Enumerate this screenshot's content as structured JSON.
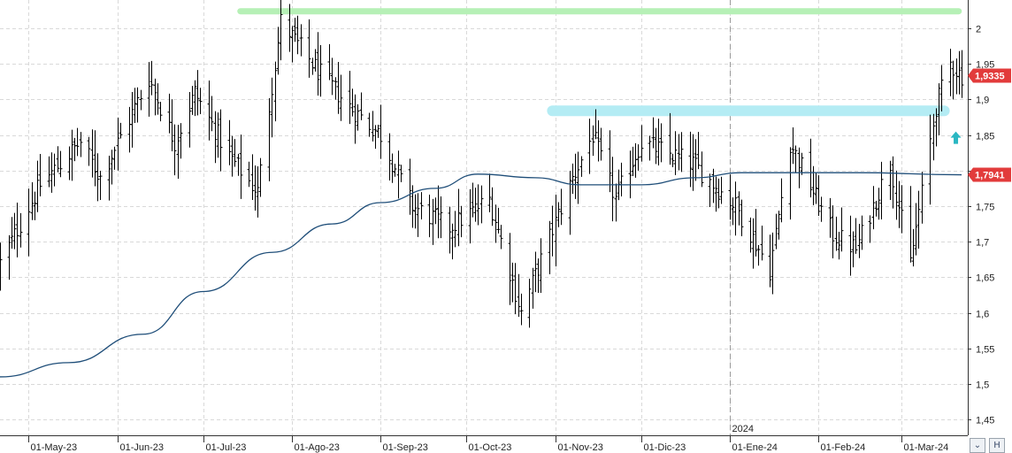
{
  "chart_data": {
    "type": "ohlc",
    "ylim": [
      1.42,
      2.03
    ],
    "y_ticks": [
      "2",
      "1,95",
      "1,9",
      "1,85",
      "1,8",
      "1,75",
      "1,7",
      "1,65",
      "1,6",
      "1,55",
      "1,5",
      "1,45"
    ],
    "y_tick_values": [
      2.0,
      1.95,
      1.9,
      1.85,
      1.8,
      1.75,
      1.7,
      1.65,
      1.6,
      1.55,
      1.5,
      1.45
    ],
    "x_start": "2023-04-21",
    "x_end": "2024-03-22",
    "month_ticks": [
      {
        "date": "2023-05-01",
        "label": "01-May-23"
      },
      {
        "date": "2023-06-01",
        "label": "01-Jun-23"
      },
      {
        "date": "2023-07-01",
        "label": "01-Jul-23"
      },
      {
        "date": "2023-08-01",
        "label": "01-Ago-23"
      },
      {
        "date": "2023-09-01",
        "label": "01-Sep-23"
      },
      {
        "date": "2023-10-01",
        "label": "01-Oct-23"
      },
      {
        "date": "2023-11-01",
        "label": "01-Nov-23"
      },
      {
        "date": "2023-12-01",
        "label": "01-Dic-23"
      },
      {
        "date": "2024-01-01",
        "label": "01-Ene-24"
      },
      {
        "date": "2024-02-01",
        "label": "01-Feb-24"
      },
      {
        "date": "2024-03-01",
        "label": "01-Mar-24"
      }
    ],
    "year_marker": {
      "date": "2024-01-01",
      "label": "2024"
    },
    "anchors": [
      {
        "date": "2023-04-21",
        "close": 1.67
      },
      {
        "date": "2023-05-05",
        "close": 1.78
      },
      {
        "date": "2023-05-19",
        "close": 1.84
      },
      {
        "date": "2023-05-26",
        "close": 1.79
      },
      {
        "date": "2023-06-12",
        "close": 1.93
      },
      {
        "date": "2023-06-21",
        "close": 1.84
      },
      {
        "date": "2023-06-28",
        "close": 1.91
      },
      {
        "date": "2023-07-10",
        "close": 1.82
      },
      {
        "date": "2023-07-20",
        "close": 1.77
      },
      {
        "date": "2023-07-28",
        "close": 2.01
      },
      {
        "date": "2023-08-10",
        "close": 1.94
      },
      {
        "date": "2023-08-21",
        "close": 1.89
      },
      {
        "date": "2023-09-01",
        "close": 1.85
      },
      {
        "date": "2023-09-12",
        "close": 1.75
      },
      {
        "date": "2023-09-25",
        "close": 1.72
      },
      {
        "date": "2023-10-09",
        "close": 1.76
      },
      {
        "date": "2023-10-20",
        "close": 1.6
      },
      {
        "date": "2023-11-06",
        "close": 1.78
      },
      {
        "date": "2023-11-14",
        "close": 1.85
      },
      {
        "date": "2023-11-22",
        "close": 1.76
      },
      {
        "date": "2023-12-01",
        "close": 1.84
      },
      {
        "date": "2023-12-19",
        "close": 1.81
      },
      {
        "date": "2024-01-03",
        "close": 1.75
      },
      {
        "date": "2024-01-15",
        "close": 1.66
      },
      {
        "date": "2024-01-22",
        "close": 1.84
      },
      {
        "date": "2024-02-06",
        "close": 1.71
      },
      {
        "date": "2024-02-14",
        "close": 1.69
      },
      {
        "date": "2024-02-26",
        "close": 1.81
      },
      {
        "date": "2024-03-04",
        "close": 1.67
      },
      {
        "date": "2024-03-13",
        "close": 1.89
      },
      {
        "date": "2024-03-18",
        "close": 1.95
      },
      {
        "date": "2024-03-22",
        "close": 1.9335
      }
    ],
    "moving_average": {
      "color": "#1f4e79",
      "points": [
        {
          "date": "2023-04-21",
          "value": 1.51
        },
        {
          "date": "2023-05-15",
          "value": 1.53
        },
        {
          "date": "2023-06-10",
          "value": 1.57
        },
        {
          "date": "2023-07-01",
          "value": 1.63
        },
        {
          "date": "2023-07-25",
          "value": 1.685
        },
        {
          "date": "2023-08-15",
          "value": 1.725
        },
        {
          "date": "2023-09-01",
          "value": 1.755
        },
        {
          "date": "2023-09-20",
          "value": 1.775
        },
        {
          "date": "2023-10-05",
          "value": 1.795
        },
        {
          "date": "2023-10-25",
          "value": 1.79
        },
        {
          "date": "2023-11-10",
          "value": 1.78
        },
        {
          "date": "2023-12-01",
          "value": 1.78
        },
        {
          "date": "2023-12-20",
          "value": 1.79
        },
        {
          "date": "2024-01-05",
          "value": 1.797
        },
        {
          "date": "2024-01-25",
          "value": 1.797
        },
        {
          "date": "2024-02-15",
          "value": 1.797
        },
        {
          "date": "2024-03-22",
          "value": 1.7941
        }
      ]
    },
    "resistance_zone_high": {
      "from": "2023-07-14",
      "to": "2024-03-21",
      "value": 2.024,
      "color": "#b6f0b6"
    },
    "resistance_zone_mid": {
      "from": "2023-10-31",
      "to": "2024-03-16",
      "value": 1.884,
      "color": "#b4ecf4"
    },
    "signal_arrow": {
      "date": "2024-03-20",
      "value": 1.845,
      "color": "#2ab7c2"
    },
    "last_price": {
      "value": 1.9335,
      "label": "1,9335",
      "color": "#e23b3b"
    },
    "ma_label": {
      "value": 1.7941,
      "label": "1,7941",
      "color": "#e23b3b"
    }
  },
  "controls": {
    "scroll_icon": "double-chevron-down-icon",
    "scroll_symbol": "⌄",
    "toolbar_icon": "chart-mode-icon",
    "toolbar_symbol": "H"
  }
}
